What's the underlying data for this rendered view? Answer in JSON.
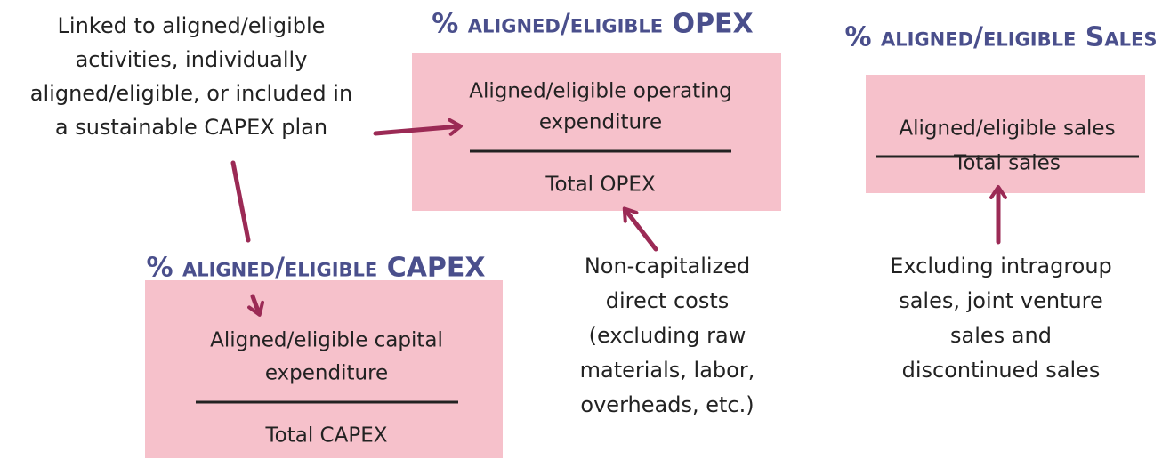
{
  "notes": {
    "left": [
      "Linked to aligned/eligible",
      "activities, individually",
      "aligned/eligible, or included in",
      "a sustainable CAPEX plan"
    ],
    "middle": [
      "Non-capitalized",
      "direct costs",
      "(excluding raw",
      "materials, labor,",
      "overheads, etc.)"
    ],
    "right": [
      "Excluding intragroup",
      "sales, joint venture",
      "sales and",
      "discontinued sales"
    ]
  },
  "opex": {
    "title": "% aligned/eligible OPEX",
    "numerator": [
      "Aligned/eligible operating",
      "expenditure"
    ],
    "denominator": "Total OPEX"
  },
  "sales": {
    "title": "% aligned/eligible Sales",
    "numerator": [
      "Aligned/eligible sales"
    ],
    "denominator": "Total sales"
  },
  "capex": {
    "title": "% aligned/eligible CAPEX",
    "numerator": [
      "Aligned/eligible capital",
      "expenditure"
    ],
    "denominator": "Total CAPEX"
  }
}
